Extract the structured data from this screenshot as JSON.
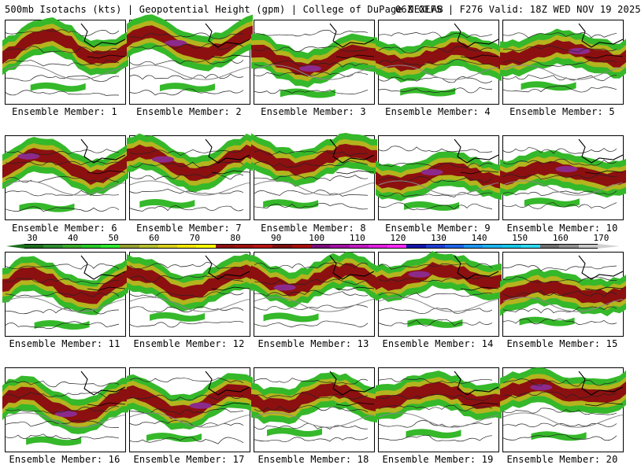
{
  "header": {
    "title": "500mb Isotachs (kts) | Geopotential Height (gpm) | College of DuPage NEXLAB",
    "run_info": "06Z GEFS | F276 Valid: 18Z WED NOV 19 2025"
  },
  "colorbar": {
    "labels": [
      "30",
      "40",
      "50",
      "60",
      "70",
      "80",
      "90",
      "100",
      "110",
      "120",
      "130",
      "140",
      "150",
      "160",
      "170"
    ],
    "colors": [
      "#1c6b1c",
      "#2e8b2e",
      "#3aaa2a",
      "#28c828",
      "#2ee82e",
      "#96a032",
      "#b4be2e",
      "#d7cf1e",
      "#f0e400",
      "#ffff00",
      "#8c1010",
      "#a01010",
      "#b41414",
      "#7a1010",
      "#a80c0c",
      "#7c0c7c",
      "#a010a0",
      "#c018c0",
      "#e020e0",
      "#ff28ff",
      "#1414aa",
      "#1e3cd2",
      "#1e64e6",
      "#1e96f0",
      "#1eb4f0",
      "#18c8e8",
      "#30d8f0",
      "#707070",
      "#909090",
      "#c8c8c8"
    ],
    "under_color": "#1c6b1c",
    "over_color": "#d0d0d0"
  },
  "members": [
    {
      "label": "Ensemble Member: 1"
    },
    {
      "label": "Ensemble Member: 2"
    },
    {
      "label": "Ensemble Member: 3"
    },
    {
      "label": "Ensemble Member: 4"
    },
    {
      "label": "Ensemble Member: 5"
    },
    {
      "label": "Ensemble Member: 6"
    },
    {
      "label": "Ensemble Member: 7"
    },
    {
      "label": "Ensemble Member: 8"
    },
    {
      "label": "Ensemble Member: 9"
    },
    {
      "label": "Ensemble Member: 10"
    },
    {
      "label": "Ensemble Member: 11"
    },
    {
      "label": "Ensemble Member: 12"
    },
    {
      "label": "Ensemble Member: 13"
    },
    {
      "label": "Ensemble Member: 14"
    },
    {
      "label": "Ensemble Member: 15"
    },
    {
      "label": "Ensemble Member: 16"
    },
    {
      "label": "Ensemble Member: 17"
    },
    {
      "label": "Ensemble Member: 18"
    },
    {
      "label": "Ensemble Member: 19"
    },
    {
      "label": "Ensemble Member: 20"
    }
  ],
  "map_colors": {
    "jet_outer": "#35b82a",
    "jet_mid": "#b4b41e",
    "jet_core": "#8c1010",
    "jet_max": "#8c2a8c",
    "contour": "#222222",
    "border": "#000000",
    "coast": "#888888"
  }
}
